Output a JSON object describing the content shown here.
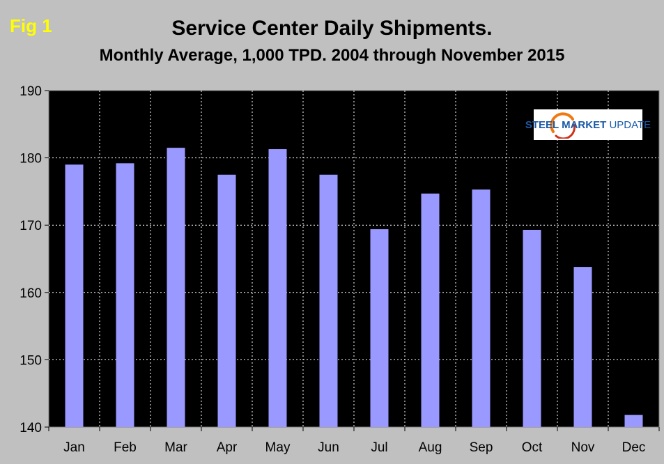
{
  "fig_label": "Fig 1",
  "chart_data": {
    "type": "bar",
    "title": "Service Center Daily Shipments.",
    "subtitle": "Monthly Average, 1,000 TPD.  2004 through November 2015",
    "categories": [
      "Jan",
      "Feb",
      "Mar",
      "Apr",
      "May",
      "Jun",
      "Jul",
      "Aug",
      "Sep",
      "Oct",
      "Nov",
      "Dec"
    ],
    "values": [
      179.0,
      179.2,
      181.5,
      177.5,
      181.3,
      177.5,
      169.4,
      174.7,
      175.3,
      169.3,
      163.8,
      141.8
    ],
    "ylim": [
      140,
      190
    ],
    "yticks": [
      "140",
      "150",
      "160",
      "170",
      "180",
      "190"
    ],
    "ytick_values": [
      140,
      150,
      160,
      170,
      180,
      190
    ],
    "grid": true,
    "colors": {
      "bar": "#9999ff",
      "plot_background": "#000000",
      "page_background": "#c0c0c0",
      "grid": "#ffffff",
      "fig_label": "#ffff00"
    }
  },
  "logo": {
    "steel": "STEEL",
    "market": "MARKET",
    "update": "UPDATE",
    "icon": "swoosh-logo-icon"
  }
}
